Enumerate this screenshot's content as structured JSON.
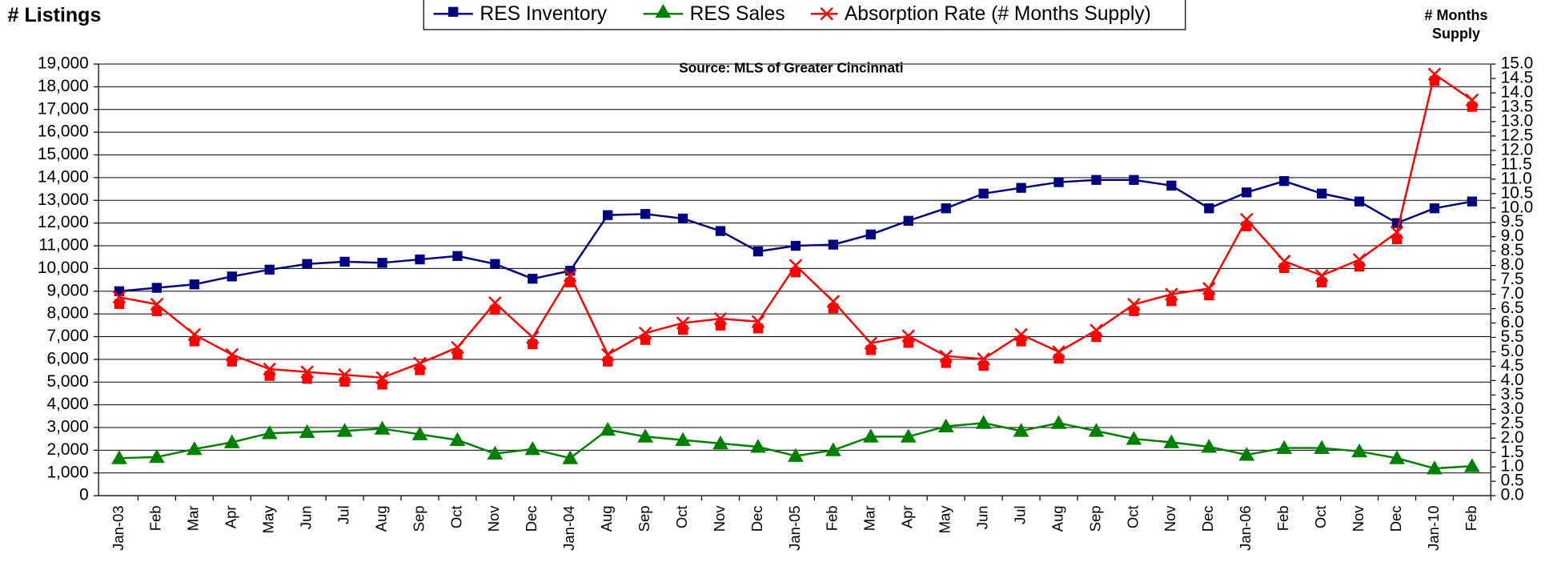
{
  "chart_data": {
    "type": "line",
    "y_label": "# Listings",
    "y2_label": "# Months Supply",
    "subtitle": "Source: MLS of Greater Cincinnati",
    "categories": [
      "Jan-03",
      "Feb",
      "Mar",
      "Apr",
      "May",
      "Jun",
      "Jul",
      "Aug",
      "Sep",
      "Oct",
      "Nov",
      "Dec",
      "Jan-04",
      "Aug",
      "Sep",
      "Oct",
      "Nov",
      "Dec",
      "Jan-05",
      "Feb",
      "Mar",
      "Apr",
      "May",
      "Jun",
      "Jul",
      "Aug",
      "Sep",
      "Oct",
      "Nov",
      "Dec",
      "Jan-06",
      "Feb",
      "Oct",
      "Nov",
      "Dec",
      "Jan-10",
      "Feb"
    ],
    "series": [
      {
        "name": "RES Inventory",
        "color": "#000080",
        "marker": "square",
        "values": [
          9000,
          9150,
          9300,
          9650,
          9950,
          10200,
          10300,
          10250,
          10400,
          10550,
          10200,
          9550,
          9900,
          12350,
          12400,
          12200,
          11650,
          10750,
          11000,
          11050,
          11500,
          12100,
          12650,
          13300,
          13550,
          13800,
          13900,
          13900,
          13650,
          12650,
          13350,
          13850,
          13300,
          12950,
          12000,
          12650,
          12950
        ]
      },
      {
        "name": "RES Sales",
        "color": "#008000",
        "marker": "triangle",
        "values": [
          1650,
          1700,
          2050,
          2350,
          2750,
          2800,
          2850,
          2950,
          2700,
          2450,
          1850,
          2050,
          1650,
          2900,
          2600,
          2450,
          2300,
          2150,
          1750,
          2000,
          2600,
          2600,
          3050,
          3200,
          2850,
          3200,
          2850,
          2500,
          2350,
          2150,
          1800,
          2100,
          2100,
          1950,
          1650,
          1200,
          1300
        ]
      },
      {
        "name": "Absorption Rate (# Months Supply)",
        "color": "#ff0000",
        "marker": "x",
        "axis": "y2",
        "values": [
          6.9,
          6.65,
          5.6,
          4.9,
          4.4,
          4.3,
          4.2,
          4.1,
          4.6,
          5.15,
          6.7,
          5.5,
          7.65,
          4.9,
          5.65,
          6.0,
          6.15,
          6.05,
          8.0,
          6.75,
          5.3,
          5.55,
          4.85,
          4.75,
          5.6,
          5.0,
          5.75,
          6.65,
          7.0,
          7.2,
          9.6,
          8.15,
          7.65,
          8.2,
          9.15,
          14.65,
          13.75
        ]
      }
    ],
    "ylim": [
      0,
      19000
    ],
    "yticks": [
      {
        "value": 0,
        "label": "0"
      },
      {
        "value": 1000,
        "label": "1,000"
      },
      {
        "value": 2000,
        "label": "2,000"
      },
      {
        "value": 3000,
        "label": "3,000"
      },
      {
        "value": 4000,
        "label": "4,000"
      },
      {
        "value": 5000,
        "label": "5,000"
      },
      {
        "value": 6000,
        "label": "6,000"
      },
      {
        "value": 7000,
        "label": "7,000"
      },
      {
        "value": 8000,
        "label": "8,000"
      },
      {
        "value": 9000,
        "label": "9,000"
      },
      {
        "value": 10000,
        "label": "10,000"
      },
      {
        "value": 11000,
        "label": "11,000"
      },
      {
        "value": 12000,
        "label": "12,000"
      },
      {
        "value": 13000,
        "label": "13,000"
      },
      {
        "value": 14000,
        "label": "14,000"
      },
      {
        "value": 15000,
        "label": "15,000"
      },
      {
        "value": 16000,
        "label": "16,000"
      },
      {
        "value": 17000,
        "label": "17,000"
      },
      {
        "value": 18000,
        "label": "18,000"
      },
      {
        "value": 19000,
        "label": "19,000"
      }
    ],
    "y2lim": [
      0,
      15
    ],
    "y2ticks": [
      {
        "value": 0,
        "label": "0.0"
      },
      0.5,
      {
        "value": 1,
        "label": "1.0"
      },
      1.5,
      {
        "value": 2,
        "label": "2.0"
      },
      2.5,
      {
        "value": 3,
        "label": "3.0"
      },
      3.5,
      {
        "value": 4,
        "label": "4.0"
      },
      4.5,
      {
        "value": 5,
        "label": "5.0"
      },
      5.5,
      {
        "value": 6,
        "label": "6.0"
      },
      6.5,
      {
        "value": 7,
        "label": "7.0"
      },
      7.5,
      {
        "value": 8,
        "label": "8.0"
      },
      8.5,
      {
        "value": 9,
        "label": "9.0"
      },
      9.5,
      {
        "value": 10,
        "label": "10.0"
      },
      10.5,
      {
        "value": 11,
        "label": "11.0"
      },
      11.5,
      {
        "value": 12,
        "label": "12.0"
      },
      12.5,
      {
        "value": 13,
        "label": "13.0"
      },
      13.5,
      {
        "value": 14,
        "label": "14.0"
      },
      14.5,
      {
        "value": 15,
        "label": "15.0"
      }
    ],
    "grid": true,
    "legend": "top"
  }
}
